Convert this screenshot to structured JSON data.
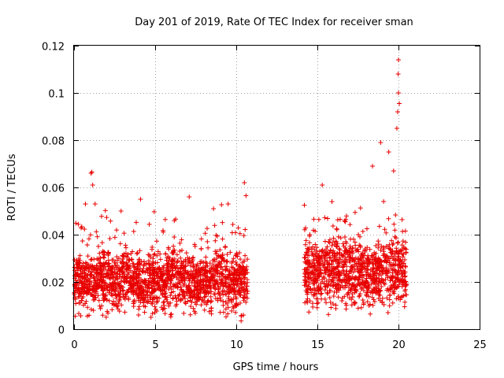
{
  "chart_data": {
    "type": "scatter",
    "title": "Day 201 of 2019, Rate Of TEC Index for receiver sman",
    "xlabel": "GPS time / hours",
    "ylabel": "ROTI / TECUs",
    "xlim": [
      0,
      25
    ],
    "ylim": [
      0,
      0.12
    ],
    "x_ticks": [
      0,
      5,
      10,
      15,
      20,
      25
    ],
    "x_tick_labels": [
      "0",
      "5",
      "10",
      "15",
      "20",
      "25"
    ],
    "y_ticks": [
      0,
      0.02,
      0.04,
      0.06,
      0.08,
      0.1,
      0.12
    ],
    "y_tick_labels": [
      "0",
      "0.02",
      "0.04",
      "0.06",
      "0.08",
      "0.1",
      "0.12"
    ],
    "grid": true,
    "marker": "+",
    "color": "#e80000",
    "series": [
      {
        "name": "ROTI",
        "segments": [
          {
            "x_range": [
              0.0,
              10.7
            ],
            "typical_range": [
              0.008,
              0.03
            ]
          },
          {
            "x_range": [
              14.2,
              20.5
            ],
            "typical_range": [
              0.01,
              0.035
            ]
          }
        ],
        "notable_points": [
          {
            "x": 1.05,
            "y": 0.066
          },
          {
            "x": 1.1,
            "y": 0.0665
          },
          {
            "x": 1.15,
            "y": 0.061
          },
          {
            "x": 0.7,
            "y": 0.053
          },
          {
            "x": 1.3,
            "y": 0.053
          },
          {
            "x": 2.9,
            "y": 0.05
          },
          {
            "x": 4.1,
            "y": 0.055
          },
          {
            "x": 7.1,
            "y": 0.056
          },
          {
            "x": 8.6,
            "y": 0.051
          },
          {
            "x": 9.5,
            "y": 0.053
          },
          {
            "x": 10.5,
            "y": 0.062
          },
          {
            "x": 10.6,
            "y": 0.0565
          },
          {
            "x": 10.3,
            "y": 0.0035
          },
          {
            "x": 14.2,
            "y": 0.0525
          },
          {
            "x": 15.3,
            "y": 0.061
          },
          {
            "x": 15.9,
            "y": 0.054
          },
          {
            "x": 18.4,
            "y": 0.069
          },
          {
            "x": 18.9,
            "y": 0.079
          },
          {
            "x": 19.4,
            "y": 0.075
          },
          {
            "x": 19.7,
            "y": 0.067
          },
          {
            "x": 19.9,
            "y": 0.085
          },
          {
            "x": 19.95,
            "y": 0.092
          },
          {
            "x": 20.0,
            "y": 0.1
          },
          {
            "x": 19.98,
            "y": 0.108
          },
          {
            "x": 20.0,
            "y": 0.114
          },
          {
            "x": 20.05,
            "y": 0.0955
          }
        ]
      }
    ]
  }
}
